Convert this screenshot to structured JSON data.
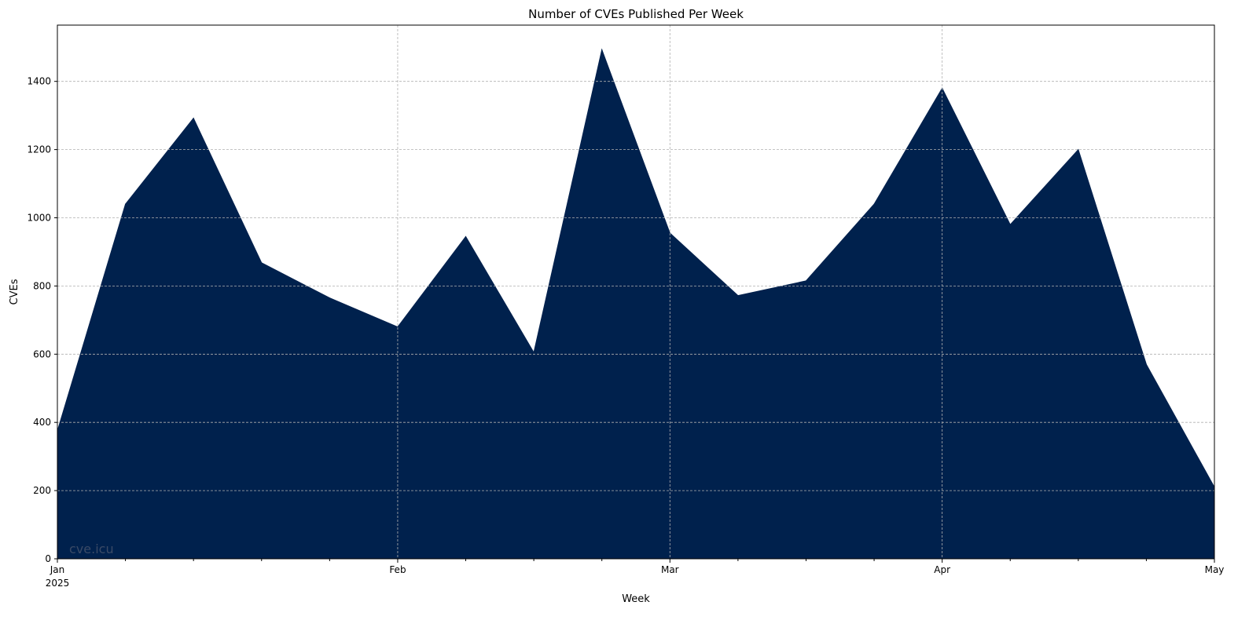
{
  "chart_data": {
    "type": "area",
    "title": "Number of CVEs Published Per Week",
    "xlabel": "Week",
    "ylabel": "CVEs",
    "x": [
      "2025-01-01",
      "2025-01-08",
      "2025-01-15",
      "2025-01-22",
      "2025-01-29",
      "2025-02-05",
      "2025-02-12",
      "2025-02-19",
      "2025-02-26",
      "2025-03-05",
      "2025-03-12",
      "2025-03-19",
      "2025-03-26",
      "2025-04-02",
      "2025-04-09",
      "2025-04-16",
      "2025-04-23",
      "2025-04-30"
    ],
    "values": [
      375,
      1040,
      1292,
      868,
      765,
      680,
      945,
      605,
      1493,
      955,
      772,
      815,
      1040,
      1380,
      980,
      1200,
      570,
      210
    ],
    "xlim": [
      "2025-01-01",
      "2025-04-30"
    ],
    "ylim": [
      0,
      1565
    ],
    "yticks": [
      0,
      200,
      400,
      600,
      800,
      1000,
      1200,
      1400
    ],
    "xticks_major": [
      {
        "date": "2025-01-01",
        "label": "Jan",
        "sublabel": "2025"
      },
      {
        "date": "2025-02-05",
        "label": "Feb",
        "sublabel": ""
      },
      {
        "date": "2025-03-05",
        "label": "Mar",
        "sublabel": ""
      },
      {
        "date": "2025-04-02",
        "label": "Apr",
        "sublabel": ""
      },
      {
        "date": "2025-04-30",
        "label": "May",
        "sublabel": ""
      }
    ],
    "grid": true,
    "fill_color": "#00214d",
    "watermark": "cve.icu"
  }
}
